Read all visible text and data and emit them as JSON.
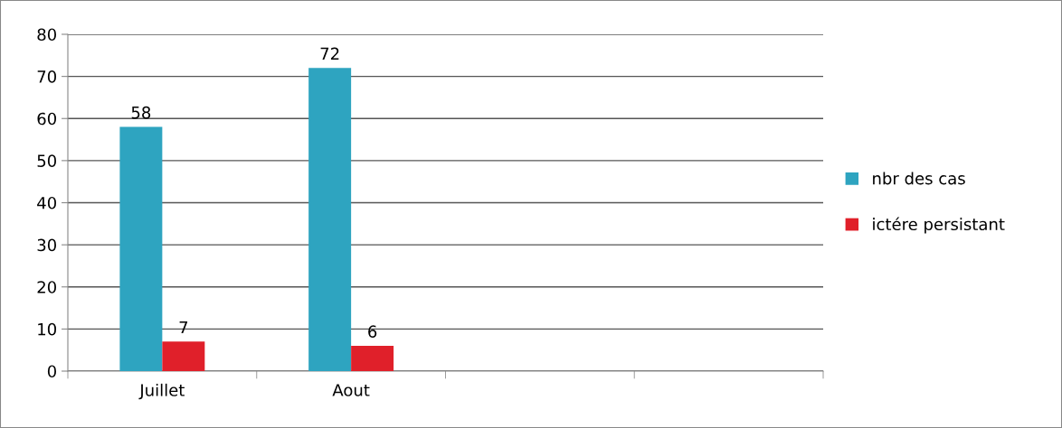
{
  "chart_data": {
    "type": "bar",
    "categories": [
      "Juillet",
      "Aout",
      null,
      null
    ],
    "series": [
      {
        "name": "nbr des cas",
        "color": "#2ea4c0",
        "values": [
          58,
          72,
          null,
          null
        ]
      },
      {
        "name": "ictére persistant",
        "color": "#e0202a",
        "values": [
          7,
          6,
          null,
          null
        ]
      }
    ],
    "ylim": [
      0,
      80
    ],
    "yticks": [
      0,
      10,
      20,
      30,
      40,
      50,
      60,
      70,
      80
    ],
    "grid": "y",
    "legend": "right",
    "data_labels": true
  }
}
